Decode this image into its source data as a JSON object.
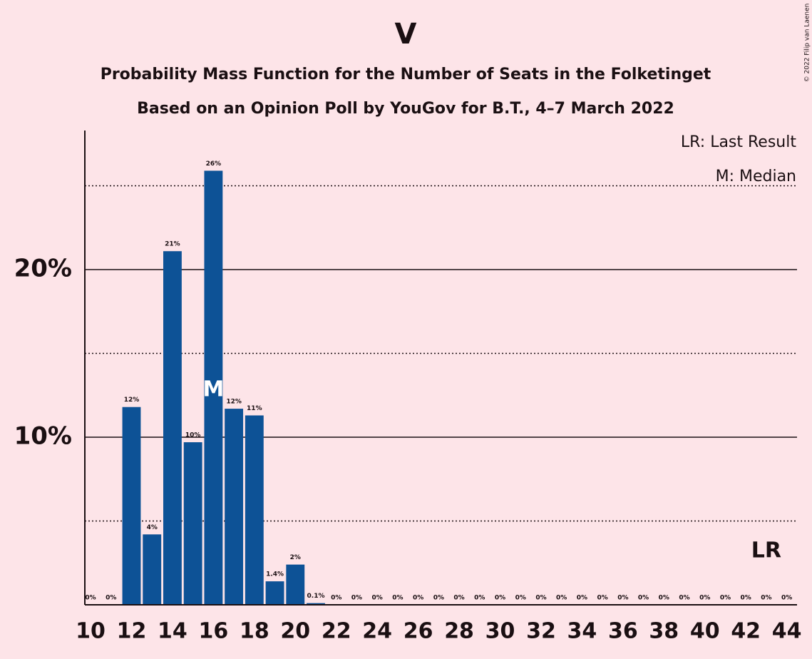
{
  "chart_data": {
    "type": "bar",
    "title": "V",
    "subtitle": "Probability Mass Function for the Number of Seats in the Folketinget",
    "subtitle2": "Based on an Opinion Poll by YouGov for B.T., 4–7 March 2022",
    "copyright": "© 2022 Filip van Laenen",
    "x": [
      10,
      11,
      12,
      13,
      14,
      15,
      16,
      17,
      18,
      19,
      20,
      21,
      22,
      23,
      24,
      25,
      26,
      27,
      28,
      29,
      30,
      31,
      32,
      33,
      34,
      35,
      36,
      37,
      38,
      39,
      40,
      41,
      42,
      43,
      44
    ],
    "values": [
      0,
      0,
      11.8,
      4.2,
      21.1,
      9.7,
      25.9,
      11.7,
      11.3,
      1.4,
      2.4,
      0.1,
      0,
      0,
      0,
      0,
      0,
      0,
      0,
      0,
      0,
      0,
      0,
      0,
      0,
      0,
      0,
      0,
      0,
      0,
      0,
      0,
      0,
      0,
      0
    ],
    "value_labels": [
      "0%",
      "0%",
      "12%",
      "4%",
      "21%",
      "10%",
      "26%",
      "12%",
      "11%",
      "1.4%",
      "2%",
      "0.1%",
      "0%",
      "0%",
      "0%",
      "0%",
      "0%",
      "0%",
      "0%",
      "0%",
      "0%",
      "0%",
      "0%",
      "0%",
      "0%",
      "0%",
      "0%",
      "0%",
      "0%",
      "0%",
      "0%",
      "0%",
      "0%",
      "0%",
      "0%"
    ],
    "color": "#0d5296",
    "xlim": [
      9.72,
      44.5
    ],
    "xticks": [
      10,
      12,
      14,
      16,
      18,
      20,
      22,
      24,
      26,
      28,
      30,
      32,
      34,
      36,
      38,
      40,
      42,
      44
    ],
    "ylim": [
      0,
      28.3
    ],
    "yticks": [
      {
        "value": 10,
        "label": "10%"
      },
      {
        "value": 20,
        "label": "20%"
      }
    ],
    "minor_yticks": [
      5,
      15,
      25
    ],
    "grid": true,
    "median": 16,
    "median_label": "M",
    "last_result": 43,
    "last_result_label": "LR",
    "legend": [
      "LR: Last Result",
      "M: Median"
    ]
  }
}
